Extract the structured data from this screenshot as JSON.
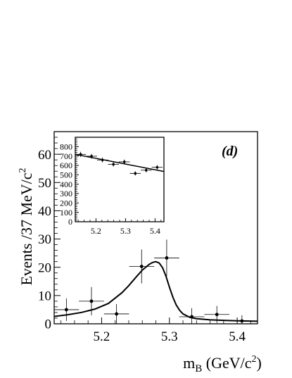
{
  "chart_data": [
    {
      "type": "scatter",
      "panel_label": "(d)",
      "xlabel": "m_B (GeV/c^2)",
      "xlabel_parts": {
        "m": "m",
        "sub": "B",
        "unit_pre": " (GeV/c",
        "unit_sup": "2",
        "unit_post": ")"
      },
      "ylabel": "Events /37 MeV/c^2",
      "ylabel_parts": {
        "text": "Events /37 MeV/c",
        "sup": "2"
      },
      "xlim": [
        5.13,
        5.43
      ],
      "ylim": [
        0,
        68
      ],
      "xticks": [
        5.2,
        5.3,
        5.4
      ],
      "xtick_labels": [
        "5.2",
        "5.3",
        "5.4"
      ],
      "yticks": [
        0,
        10,
        20,
        30,
        40,
        50,
        60
      ],
      "ytick_labels": [
        "0",
        "10",
        "20",
        "30",
        "40",
        "50",
        "60"
      ],
      "grid": false,
      "points": [
        {
          "x": 5.148,
          "y": 5.0,
          "xerr": 0.0185,
          "yerr": 4.0
        },
        {
          "x": 5.185,
          "y": 8.0,
          "xerr": 0.0185,
          "yerr": 5.0
        },
        {
          "x": 5.222,
          "y": 3.5,
          "xerr": 0.0185,
          "yerr": 3.5
        },
        {
          "x": 5.259,
          "y": 20.3,
          "xerr": 0.0185,
          "yerr": 6.0
        },
        {
          "x": 5.296,
          "y": 23.3,
          "xerr": 0.0185,
          "yerr": 6.5
        },
        {
          "x": 5.333,
          "y": 2.5,
          "xerr": 0.0185,
          "yerr": 3.0
        },
        {
          "x": 5.37,
          "y": 3.3,
          "xerr": 0.0185,
          "yerr": 3.0
        },
        {
          "x": 5.407,
          "y": 1.0,
          "xerr": 0.0185,
          "yerr": 2.0
        }
      ],
      "fit_curve": {
        "x": [
          5.13,
          5.15,
          5.17,
          5.19,
          5.21,
          5.23,
          5.24,
          5.25,
          5.26,
          5.27,
          5.275,
          5.28,
          5.285,
          5.29,
          5.295,
          5.3,
          5.305,
          5.31,
          5.315,
          5.32,
          5.33,
          5.34,
          5.36,
          5.38,
          5.4,
          5.43
        ],
        "y": [
          2.6,
          3.2,
          4.0,
          5.2,
          7.2,
          11.0,
          13.5,
          16.3,
          19.0,
          21.0,
          21.7,
          22.0,
          21.5,
          19.8,
          16.8,
          13.0,
          9.5,
          6.7,
          4.8,
          3.5,
          2.3,
          1.8,
          1.4,
          1.2,
          1.05,
          0.9
        ]
      }
    },
    {
      "type": "scatter",
      "xlim": [
        5.13,
        5.43
      ],
      "ylim": [
        0,
        900
      ],
      "xticks": [
        5.2,
        5.3,
        5.4
      ],
      "xtick_labels": [
        "5.2",
        "5.3",
        "5.4"
      ],
      "yticks": [
        0,
        100,
        200,
        300,
        400,
        500,
        600,
        700,
        800
      ],
      "ytick_labels": [
        "0",
        "100",
        "200",
        "300",
        "400",
        "500",
        "600",
        "700",
        "800"
      ],
      "grid": false,
      "points": [
        {
          "x": 5.148,
          "y": 718,
          "xerr": 0.0185,
          "yerr": 27
        },
        {
          "x": 5.185,
          "y": 698,
          "xerr": 0.0185,
          "yerr": 26
        },
        {
          "x": 5.222,
          "y": 658,
          "xerr": 0.0185,
          "yerr": 26
        },
        {
          "x": 5.259,
          "y": 612,
          "xerr": 0.0185,
          "yerr": 25
        },
        {
          "x": 5.296,
          "y": 638,
          "xerr": 0.0185,
          "yerr": 25
        },
        {
          "x": 5.333,
          "y": 515,
          "xerr": 0.0185,
          "yerr": 23
        },
        {
          "x": 5.37,
          "y": 549,
          "xerr": 0.0185,
          "yerr": 23
        },
        {
          "x": 5.407,
          "y": 580,
          "xerr": 0.0185,
          "yerr": 24
        }
      ],
      "fit_line": {
        "x": [
          5.13,
          5.43
        ],
        "y": [
          718,
          535
        ]
      }
    }
  ]
}
